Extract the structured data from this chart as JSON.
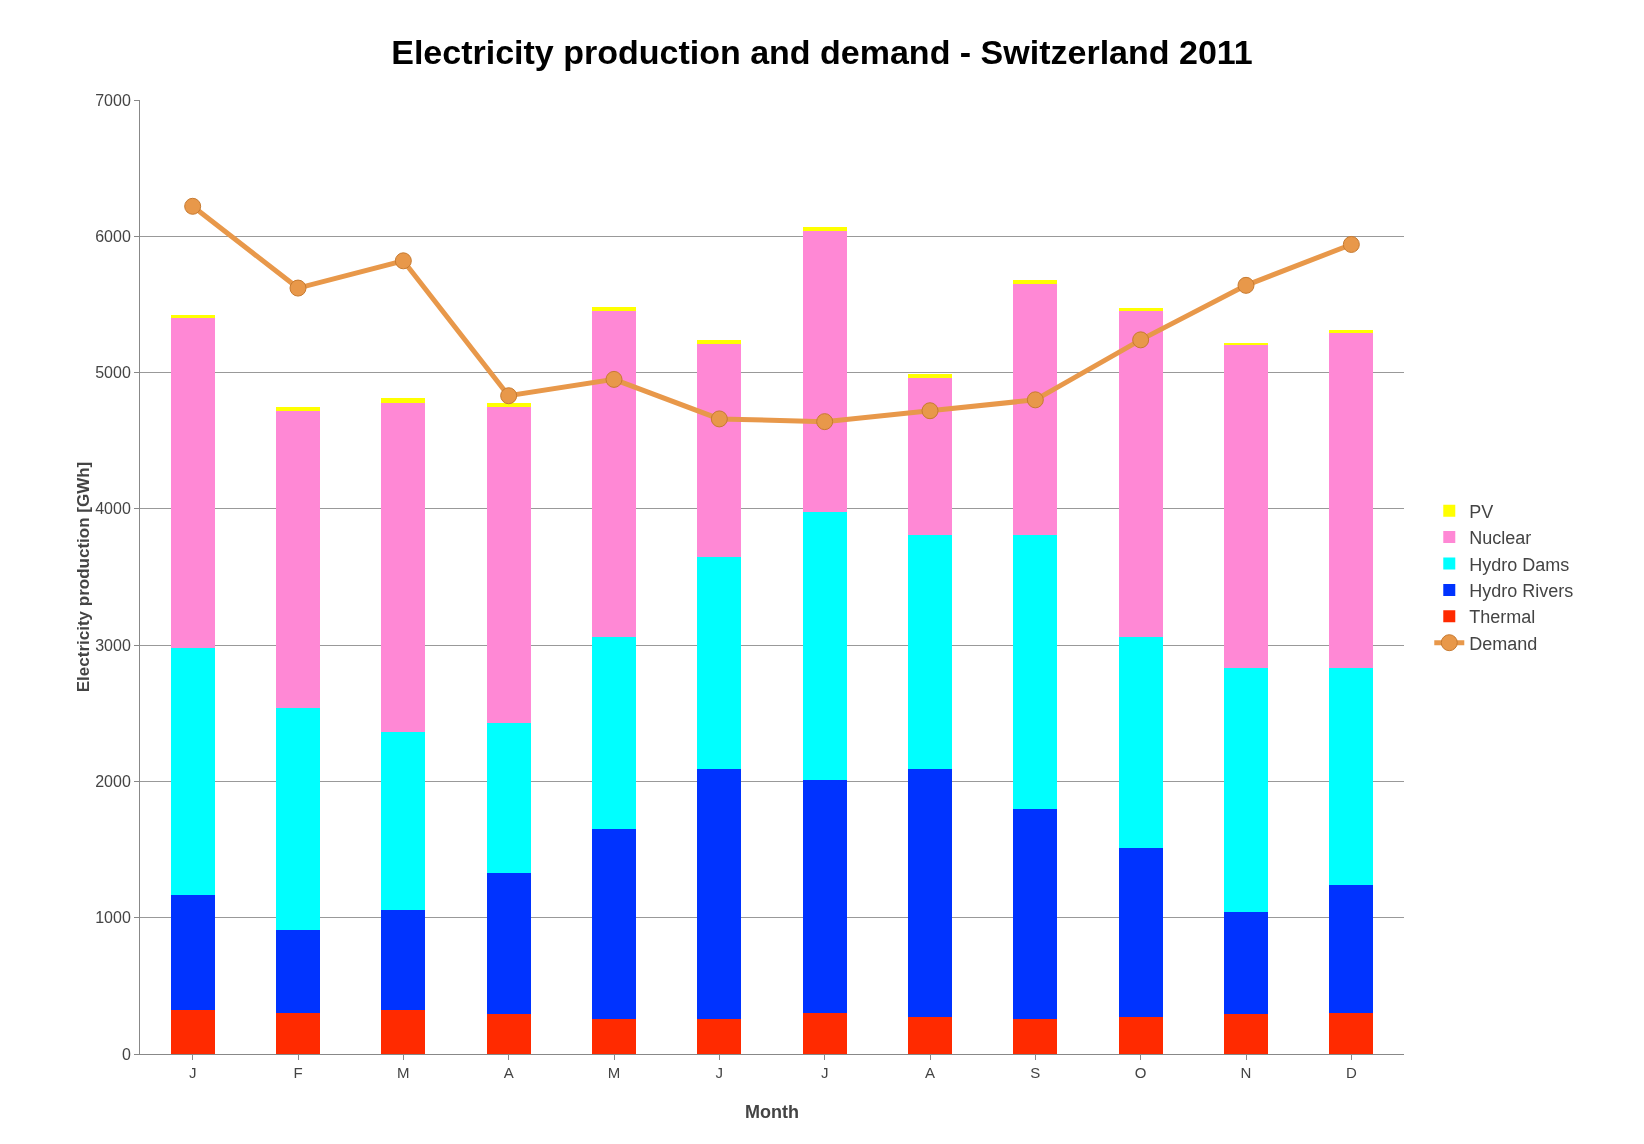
{
  "chart_data": {
    "type": "bar",
    "title": "Electricity production and demand - Switzerland 2011",
    "xlabel": "Month",
    "ylabel": "Electricity production [GWh]",
    "categories": [
      "J",
      "F",
      "M",
      "A",
      "M",
      "J",
      "J",
      "A",
      "S",
      "O",
      "N",
      "D"
    ],
    "stacked": true,
    "ylim": [
      0,
      7000
    ],
    "yticks": [
      0,
      1000,
      2000,
      3000,
      4000,
      5000,
      6000,
      7000
    ],
    "grid": "y",
    "legend": "right",
    "series": [
      {
        "name": "Thermal",
        "color": "#ff2a00",
        "values": [
          320,
          300,
          320,
          290,
          260,
          260,
          300,
          275,
          260,
          275,
          290,
          300
        ]
      },
      {
        "name": "Hydro Rivers",
        "color": "#0033ff",
        "values": [
          850,
          610,
          740,
          1040,
          1390,
          1830,
          1710,
          1815,
          1540,
          1235,
          750,
          940
        ]
      },
      {
        "name": "Hydro Dams",
        "color": "#00ffff",
        "values": [
          1810,
          1630,
          1300,
          1100,
          1410,
          1560,
          1970,
          1720,
          2010,
          1550,
          1790,
          1590
        ]
      },
      {
        "name": "Nuclear",
        "color": "#ff88d5",
        "values": [
          2420,
          2180,
          2420,
          2320,
          2390,
          1560,
          2060,
          1150,
          1840,
          2390,
          2370,
          2460
        ]
      },
      {
        "name": "PV",
        "color": "#ffff00",
        "values": [
          20,
          25,
          30,
          30,
          30,
          30,
          30,
          30,
          30,
          25,
          20,
          20
        ]
      },
      {
        "name": "Demand",
        "type": "line",
        "marker": "circle",
        "color": "#e8984a",
        "values": [
          6220,
          5620,
          5820,
          4830,
          4950,
          4660,
          4640,
          4720,
          4800,
          5240,
          5640,
          5940
        ]
      }
    ]
  }
}
